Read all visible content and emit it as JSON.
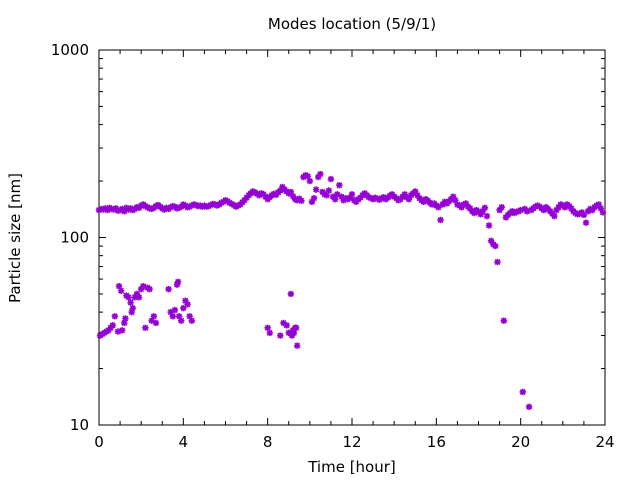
{
  "chart_data": {
    "type": "scatter",
    "title": "Modes location (5/9/1)",
    "xlabel": "Time [hour]",
    "ylabel": "Particle size [nm]",
    "xlim": [
      0,
      24
    ],
    "ylim": [
      10,
      1000
    ],
    "yscale": "log",
    "grid": false,
    "legend": "none",
    "marker": "asterisk",
    "color": "#9400d3",
    "x_ticks": [
      0,
      4,
      8,
      12,
      16,
      20,
      24
    ],
    "y_ticks": [
      10,
      100,
      1000
    ],
    "x_tick_labels": [
      "0",
      "4",
      "8",
      "12",
      "16",
      "20",
      "24"
    ],
    "y_tick_labels": [
      "10",
      "100",
      "1000"
    ],
    "series": [
      {
        "points": [
          [
            0.0,
            140
          ],
          [
            0.1,
            142
          ],
          [
            0.2,
            141
          ],
          [
            0.3,
            143
          ],
          [
            0.4,
            140
          ],
          [
            0.5,
            144
          ],
          [
            0.6,
            142
          ],
          [
            0.7,
            141
          ],
          [
            0.8,
            143
          ],
          [
            0.9,
            139
          ],
          [
            1.0,
            140
          ],
          [
            1.1,
            142
          ],
          [
            1.2,
            138
          ],
          [
            1.3,
            144
          ],
          [
            1.4,
            141
          ],
          [
            1.5,
            143
          ],
          [
            1.6,
            140
          ],
          [
            1.7,
            142
          ],
          [
            1.8,
            145
          ],
          [
            1.9,
            144
          ],
          [
            2.0,
            148
          ],
          [
            2.1,
            150
          ],
          [
            2.2,
            147
          ],
          [
            2.3,
            145
          ],
          [
            2.4,
            143
          ],
          [
            2.5,
            142
          ],
          [
            2.6,
            144
          ],
          [
            2.7,
            147
          ],
          [
            2.8,
            149
          ],
          [
            2.9,
            146
          ],
          [
            3.0,
            143
          ],
          [
            3.1,
            141
          ],
          [
            3.2,
            144
          ],
          [
            3.3,
            142
          ],
          [
            3.4,
            145
          ],
          [
            3.5,
            147
          ],
          [
            3.6,
            146
          ],
          [
            3.7,
            143
          ],
          [
            3.8,
            144
          ],
          [
            3.9,
            146
          ],
          [
            4.0,
            150
          ],
          [
            4.1,
            148
          ],
          [
            4.2,
            145
          ],
          [
            4.3,
            146
          ],
          [
            4.4,
            148
          ],
          [
            4.5,
            150
          ],
          [
            4.6,
            149
          ],
          [
            4.7,
            147
          ],
          [
            4.8,
            148
          ],
          [
            4.9,
            146
          ],
          [
            5.0,
            148
          ],
          [
            5.1,
            146
          ],
          [
            5.2,
            147
          ],
          [
            5.3,
            149
          ],
          [
            5.4,
            151
          ],
          [
            5.5,
            150
          ],
          [
            5.6,
            148
          ],
          [
            5.7,
            150
          ],
          [
            5.8,
            153
          ],
          [
            5.9,
            155
          ],
          [
            6.0,
            158
          ],
          [
            6.1,
            156
          ],
          [
            6.2,
            153
          ],
          [
            6.3,
            151
          ],
          [
            6.4,
            149
          ],
          [
            6.5,
            146
          ],
          [
            6.6,
            148
          ],
          [
            6.7,
            150
          ],
          [
            6.8,
            154
          ],
          [
            6.9,
            158
          ],
          [
            7.0,
            163
          ],
          [
            7.1,
            168
          ],
          [
            7.2,
            172
          ],
          [
            7.3,
            176
          ],
          [
            7.4,
            174
          ],
          [
            7.5,
            171
          ],
          [
            7.6,
            168
          ],
          [
            7.7,
            172
          ],
          [
            7.8,
            170
          ],
          [
            7.9,
            165
          ],
          [
            8.0,
            160
          ],
          [
            8.1,
            164
          ],
          [
            8.2,
            168
          ],
          [
            8.3,
            171
          ],
          [
            8.4,
            169
          ],
          [
            8.5,
            174
          ],
          [
            8.6,
            178
          ],
          [
            8.7,
            186
          ],
          [
            8.8,
            180
          ],
          [
            8.9,
            176
          ],
          [
            9.0,
            172
          ],
          [
            9.1,
            175
          ],
          [
            9.2,
            166
          ],
          [
            9.3,
            160
          ],
          [
            9.4,
            158
          ],
          [
            9.5,
            161
          ],
          [
            9.6,
            157
          ],
          [
            9.7,
            210
          ],
          [
            9.8,
            215
          ],
          [
            9.9,
            212
          ],
          [
            10.0,
            200
          ],
          [
            10.1,
            155
          ],
          [
            10.2,
            162
          ],
          [
            10.3,
            180
          ],
          [
            10.4,
            210
          ],
          [
            10.5,
            218
          ],
          [
            10.6,
            175
          ],
          [
            10.7,
            170
          ],
          [
            10.8,
            168
          ],
          [
            10.9,
            178
          ],
          [
            11.0,
            205
          ],
          [
            11.1,
            165
          ],
          [
            11.2,
            160
          ],
          [
            11.3,
            170
          ],
          [
            11.4,
            190
          ],
          [
            11.5,
            165
          ],
          [
            11.6,
            158
          ],
          [
            11.7,
            162
          ],
          [
            11.8,
            160
          ],
          [
            11.9,
            163
          ],
          [
            12.0,
            170
          ],
          [
            12.1,
            158
          ],
          [
            12.2,
            155
          ],
          [
            12.3,
            160
          ],
          [
            12.4,
            163
          ],
          [
            12.5,
            168
          ],
          [
            12.6,
            172
          ],
          [
            12.7,
            168
          ],
          [
            12.8,
            164
          ],
          [
            12.9,
            162
          ],
          [
            13.0,
            160
          ],
          [
            13.1,
            163
          ],
          [
            13.2,
            161
          ],
          [
            13.3,
            159
          ],
          [
            13.4,
            162
          ],
          [
            13.5,
            164
          ],
          [
            13.6,
            160
          ],
          [
            13.7,
            163
          ],
          [
            13.8,
            167
          ],
          [
            13.9,
            170
          ],
          [
            14.0,
            165
          ],
          [
            14.1,
            162
          ],
          [
            14.2,
            158
          ],
          [
            14.3,
            160
          ],
          [
            14.4,
            165
          ],
          [
            14.5,
            170
          ],
          [
            14.6,
            164
          ],
          [
            14.7,
            160
          ],
          [
            14.8,
            168
          ],
          [
            14.9,
            172
          ],
          [
            15.0,
            176
          ],
          [
            15.1,
            168
          ],
          [
            15.2,
            162
          ],
          [
            15.3,
            158
          ],
          [
            15.4,
            155
          ],
          [
            15.5,
            160
          ],
          [
            15.6,
            157
          ],
          [
            15.7,
            153
          ],
          [
            15.8,
            150
          ],
          [
            15.9,
            152
          ],
          [
            16.0,
            148
          ],
          [
            16.1,
            145
          ],
          [
            16.2,
            124
          ],
          [
            16.3,
            150
          ],
          [
            16.4,
            155
          ],
          [
            16.5,
            152
          ],
          [
            16.6,
            156
          ],
          [
            16.7,
            160
          ],
          [
            16.8,
            165
          ],
          [
            16.9,
            158
          ],
          [
            17.0,
            150
          ],
          [
            17.1,
            148
          ],
          [
            17.2,
            145
          ],
          [
            17.3,
            150
          ],
          [
            17.4,
            152
          ],
          [
            17.5,
            146
          ],
          [
            17.6,
            143
          ],
          [
            17.7,
            138
          ],
          [
            17.8,
            135
          ],
          [
            17.9,
            140
          ],
          [
            18.0,
            137
          ],
          [
            18.1,
            133
          ],
          [
            18.2,
            138
          ],
          [
            18.3,
            144
          ],
          [
            18.4,
            130
          ],
          [
            18.5,
            116
          ],
          [
            18.6,
            96
          ],
          [
            18.7,
            92
          ],
          [
            18.8,
            90
          ],
          [
            18.9,
            74
          ],
          [
            19.0,
            140
          ],
          [
            19.1,
            145
          ],
          [
            19.2,
            36
          ],
          [
            19.3,
            128
          ],
          [
            19.4,
            132
          ],
          [
            19.5,
            135
          ],
          [
            19.6,
            138
          ],
          [
            19.7,
            135
          ],
          [
            19.8,
            137
          ],
          [
            19.9,
            138
          ],
          [
            20.0,
            140
          ],
          [
            20.1,
            15
          ],
          [
            20.2,
            142
          ],
          [
            20.3,
            138
          ],
          [
            20.4,
            12.5
          ],
          [
            20.5,
            140
          ],
          [
            20.6,
            143
          ],
          [
            20.7,
            146
          ],
          [
            20.8,
            148
          ],
          [
            20.9,
            146
          ],
          [
            21.0,
            143
          ],
          [
            21.1,
            140
          ],
          [
            21.2,
            145
          ],
          [
            21.3,
            142
          ],
          [
            21.4,
            138
          ],
          [
            21.5,
            134
          ],
          [
            21.6,
            130
          ],
          [
            21.7,
            140
          ],
          [
            21.8,
            145
          ],
          [
            21.9,
            150
          ],
          [
            22.0,
            148
          ],
          [
            22.1,
            145
          ],
          [
            22.2,
            150
          ],
          [
            22.3,
            147
          ],
          [
            22.4,
            143
          ],
          [
            22.5,
            138
          ],
          [
            22.6,
            135
          ],
          [
            22.7,
            133
          ],
          [
            22.8,
            134
          ],
          [
            22.9,
            136
          ],
          [
            23.0,
            132
          ],
          [
            23.1,
            120
          ],
          [
            23.2,
            138
          ],
          [
            23.3,
            142
          ],
          [
            23.4,
            140
          ],
          [
            23.5,
            145
          ],
          [
            23.6,
            148
          ],
          [
            23.7,
            150
          ],
          [
            23.8,
            143
          ],
          [
            23.9,
            136
          ],
          [
            0.05,
            30
          ],
          [
            0.15,
            30.5
          ],
          [
            0.25,
            31
          ],
          [
            0.35,
            31.5
          ],
          [
            0.45,
            32
          ],
          [
            0.55,
            33
          ],
          [
            0.65,
            34
          ],
          [
            0.75,
            38
          ],
          [
            0.9,
            31.5
          ],
          [
            0.95,
            55
          ],
          [
            1.05,
            52
          ],
          [
            1.1,
            32
          ],
          [
            1.2,
            35
          ],
          [
            1.25,
            37
          ],
          [
            1.3,
            49
          ],
          [
            1.4,
            48
          ],
          [
            1.5,
            45
          ],
          [
            1.55,
            40
          ],
          [
            1.6,
            42
          ],
          [
            1.7,
            48
          ],
          [
            1.8,
            50
          ],
          [
            1.9,
            48
          ],
          [
            2.0,
            53
          ],
          [
            2.1,
            55
          ],
          [
            2.2,
            33
          ],
          [
            2.3,
            54
          ],
          [
            2.4,
            53
          ],
          [
            2.5,
            36
          ],
          [
            2.6,
            38
          ],
          [
            2.7,
            35
          ],
          [
            3.3,
            53
          ],
          [
            3.4,
            40
          ],
          [
            3.5,
            38
          ],
          [
            3.6,
            41
          ],
          [
            3.7,
            56
          ],
          [
            3.75,
            58
          ],
          [
            3.8,
            38
          ],
          [
            3.9,
            36
          ],
          [
            4.0,
            42
          ],
          [
            4.1,
            46
          ],
          [
            4.2,
            44
          ],
          [
            4.3,
            38
          ],
          [
            4.4,
            36
          ],
          [
            8.0,
            33
          ],
          [
            8.1,
            31
          ],
          [
            8.6,
            30
          ],
          [
            8.75,
            35
          ],
          [
            8.9,
            34
          ],
          [
            9.0,
            31
          ],
          [
            9.1,
            50
          ],
          [
            9.15,
            30
          ],
          [
            9.2,
            32
          ],
          [
            9.25,
            31
          ],
          [
            9.3,
            33
          ],
          [
            9.35,
            33
          ],
          [
            9.4,
            26.5
          ]
        ]
      }
    ]
  }
}
